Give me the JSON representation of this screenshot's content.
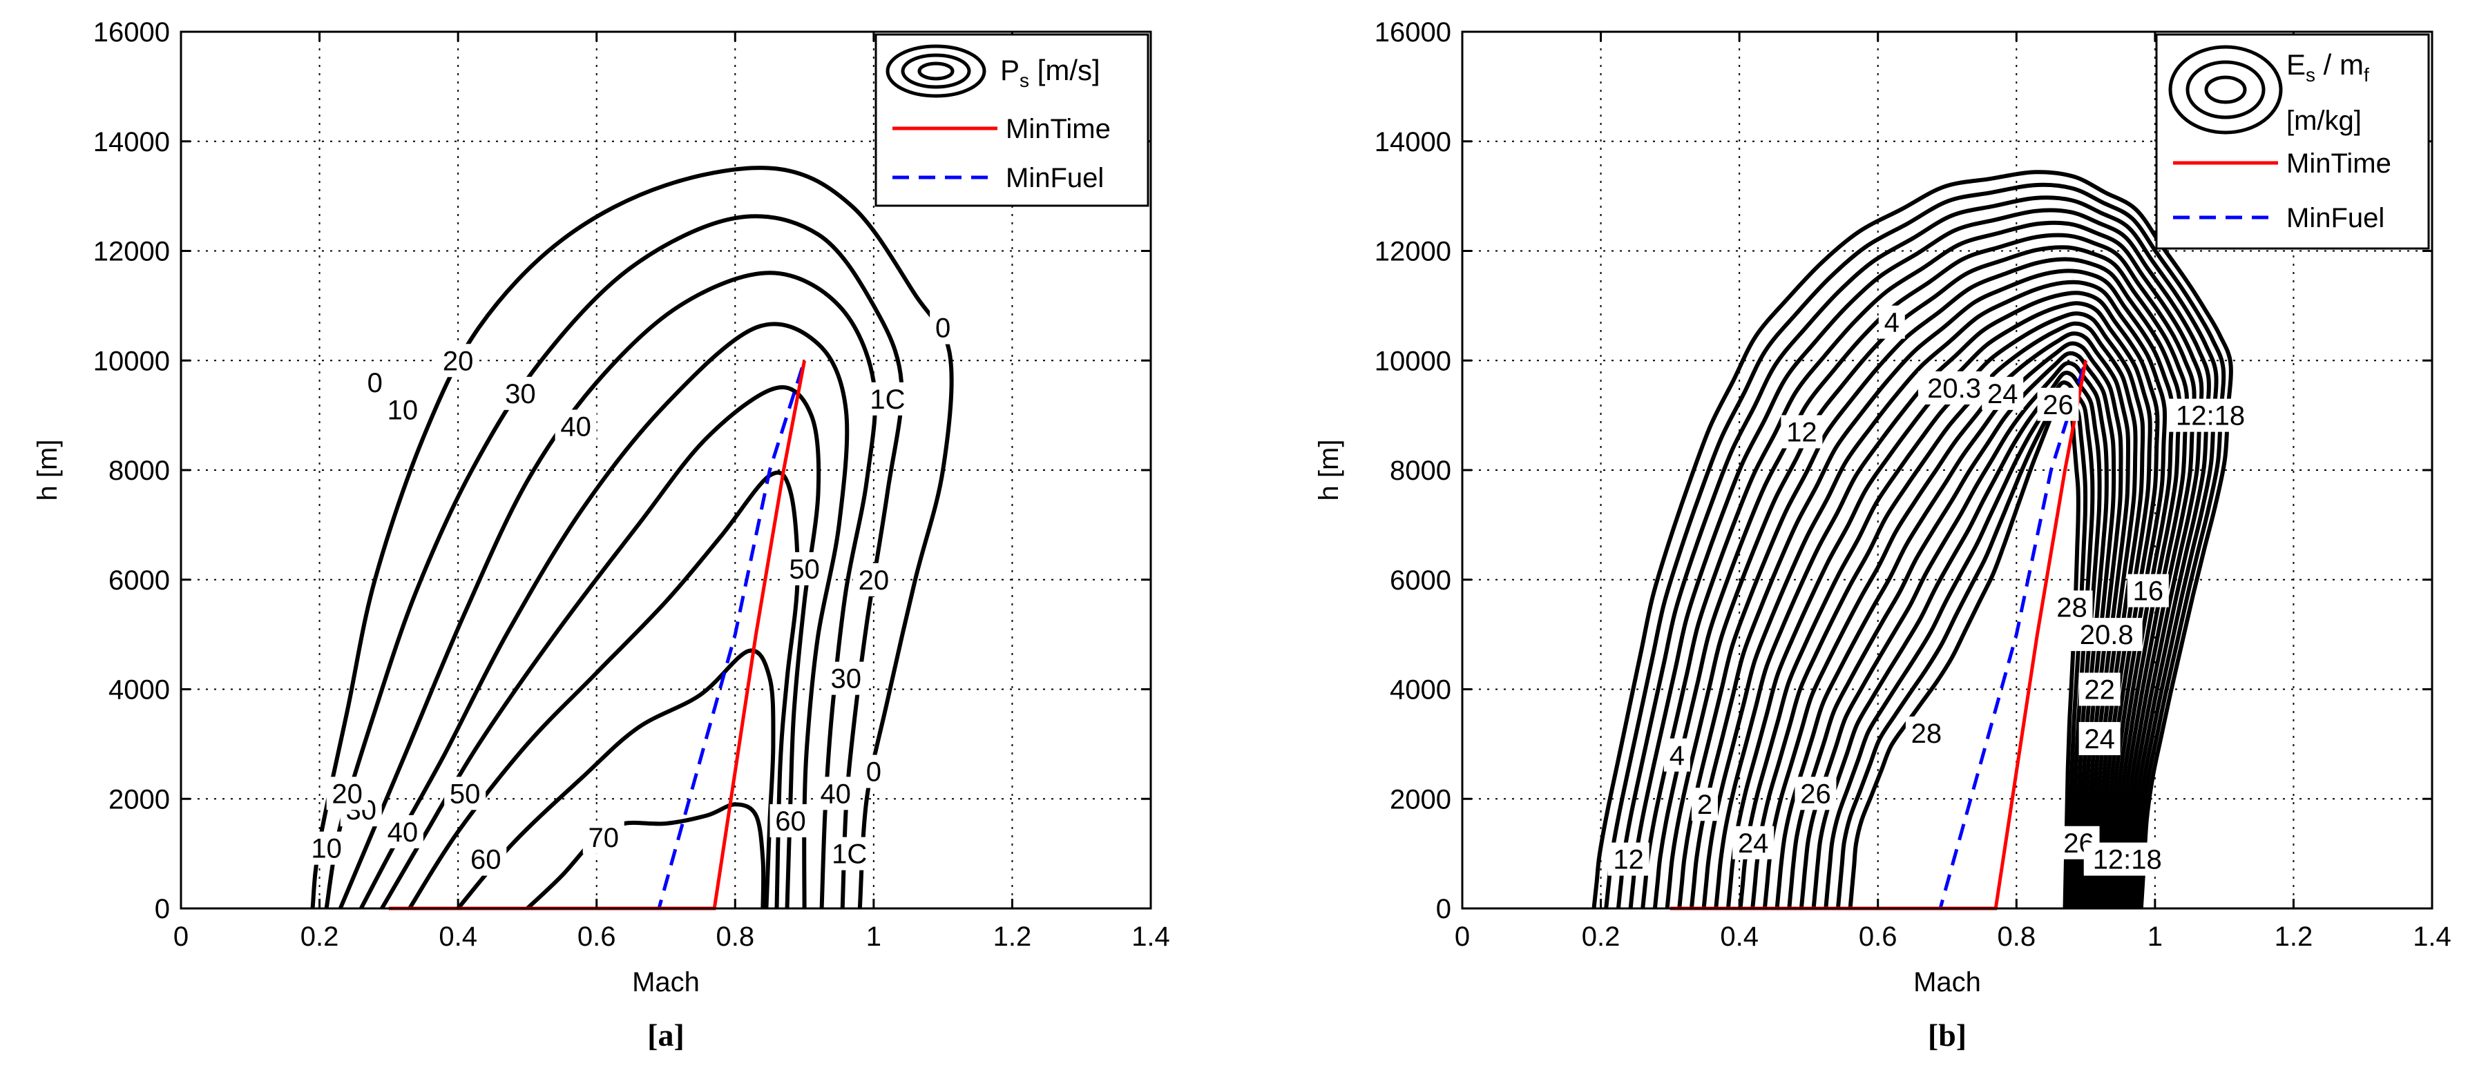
{
  "chart_data": [
    {
      "type": "contour",
      "panel_label": "[a]",
      "xlabel": "Mach",
      "ylabel": "h [m]",
      "xlim": [
        0,
        1.4
      ],
      "ylim": [
        0,
        16000
      ],
      "xticks": [
        "0",
        "0.2",
        "0.4",
        "0.6",
        "0.8",
        "1",
        "1.2",
        "1.4"
      ],
      "yticks": [
        "0",
        "2000",
        "4000",
        "6000",
        "8000",
        "10000",
        "12000",
        "14000",
        "16000"
      ],
      "grid": true,
      "legend": {
        "position": "top-right",
        "contour_label": "P",
        "contour_label_sub": "s",
        "contour_label_unit": " [m/s]",
        "entries": [
          "MinTime",
          "MinFuel"
        ]
      },
      "colors": {
        "min_time": "#ff0000",
        "min_fuel": "#0000ff",
        "contour": "#000000"
      },
      "contours": [
        {
          "level": "0",
          "points": [
            [
              0.19,
              0
            ],
            [
              0.2,
              1200
            ],
            [
              0.24,
              3600
            ],
            [
              0.28,
              6000
            ],
            [
              0.35,
              8600
            ],
            [
              0.43,
              10600
            ],
            [
              0.55,
              12200
            ],
            [
              0.7,
              13200
            ],
            [
              0.86,
              13500
            ],
            [
              0.97,
              12800
            ],
            [
              1.06,
              11200
            ],
            [
              1.11,
              10100
            ],
            [
              1.1,
              8000
            ],
            [
              1.06,
              6000
            ],
            [
              1.02,
              3800
            ],
            [
              0.99,
              2000
            ],
            [
              0.98,
              0
            ]
          ]
        },
        {
          "level": "10",
          "points": [
            [
              0.21,
              0
            ],
            [
              0.23,
              1500
            ],
            [
              0.28,
              3600
            ],
            [
              0.34,
              5800
            ],
            [
              0.42,
              8000
            ],
            [
              0.52,
              10000
            ],
            [
              0.65,
              11700
            ],
            [
              0.8,
              12600
            ],
            [
              0.92,
              12300
            ],
            [
              1.0,
              11000
            ],
            [
              1.04,
              9600
            ],
            [
              1.02,
              7600
            ],
            [
              0.99,
              5200
            ],
            [
              0.97,
              3200
            ],
            [
              0.96,
              1800
            ],
            [
              0.955,
              0
            ]
          ]
        },
        {
          "level": "20",
          "points": [
            [
              0.23,
              0
            ],
            [
              0.27,
              1200
            ],
            [
              0.33,
              3000
            ],
            [
              0.41,
              5400
            ],
            [
              0.5,
              7800
            ],
            [
              0.6,
              9600
            ],
            [
              0.72,
              11000
            ],
            [
              0.85,
              11600
            ],
            [
              0.95,
              11000
            ],
            [
              1.0,
              9600
            ],
            [
              0.99,
              7800
            ],
            [
              0.96,
              5800
            ],
            [
              0.94,
              3600
            ],
            [
              0.93,
              1800
            ],
            [
              0.925,
              0
            ]
          ]
        },
        {
          "level": "30",
          "points": [
            [
              0.26,
              0
            ],
            [
              0.31,
              1200
            ],
            [
              0.38,
              2800
            ],
            [
              0.47,
              5000
            ],
            [
              0.58,
              7300
            ],
            [
              0.7,
              9200
            ],
            [
              0.83,
              10600
            ],
            [
              0.92,
              10300
            ],
            [
              0.96,
              9100
            ],
            [
              0.95,
              7000
            ],
            [
              0.92,
              5000
            ],
            [
              0.905,
              3200
            ],
            [
              0.9,
              1800
            ],
            [
              0.9,
              0
            ]
          ]
        },
        {
          "level": "40",
          "points": [
            [
              0.29,
              0
            ],
            [
              0.35,
              1300
            ],
            [
              0.43,
              3000
            ],
            [
              0.54,
              5000
            ],
            [
              0.66,
              7000
            ],
            [
              0.76,
              8600
            ],
            [
              0.86,
              9500
            ],
            [
              0.91,
              9000
            ],
            [
              0.92,
              7600
            ],
            [
              0.9,
              5600
            ],
            [
              0.885,
              3600
            ],
            [
              0.88,
              2000
            ],
            [
              0.875,
              0
            ]
          ]
        },
        {
          "level": "50",
          "points": [
            [
              0.33,
              0
            ],
            [
              0.4,
              1400
            ],
            [
              0.5,
              3000
            ],
            [
              0.6,
              4300
            ],
            [
              0.7,
              5600
            ],
            [
              0.78,
              6800
            ],
            [
              0.85,
              7900
            ],
            [
              0.88,
              7600
            ],
            [
              0.89,
              6000
            ],
            [
              0.875,
              4200
            ],
            [
              0.865,
              2600
            ],
            [
              0.86,
              0
            ]
          ]
        },
        {
          "level": "60",
          "points": [
            [
              0.4,
              0
            ],
            [
              0.48,
              1200
            ],
            [
              0.58,
              2400
            ],
            [
              0.66,
              3300
            ],
            [
              0.75,
              3900
            ],
            [
              0.82,
              4700
            ],
            [
              0.85,
              4200
            ],
            [
              0.855,
              3000
            ],
            [
              0.85,
              1600
            ],
            [
              0.845,
              0
            ]
          ]
        },
        {
          "level": "70",
          "points": [
            [
              0.5,
              0
            ],
            [
              0.55,
              600
            ],
            [
              0.6,
              1300
            ],
            [
              0.64,
              1550
            ],
            [
              0.7,
              1550
            ],
            [
              0.76,
              1700
            ],
            [
              0.8,
              1900
            ],
            [
              0.83,
              1700
            ],
            [
              0.84,
              900
            ],
            [
              0.84,
              0
            ]
          ]
        }
      ],
      "min_time_path": [
        [
          0.3,
          0
        ],
        [
          0.77,
          0
        ],
        [
          0.83,
          5000
        ],
        [
          0.87,
          8000
        ],
        [
          0.9,
          10000
        ]
      ],
      "min_fuel_path": [
        [
          0.3,
          0
        ],
        [
          0.69,
          0
        ],
        [
          0.8,
          5000
        ],
        [
          0.85,
          8000
        ],
        [
          0.9,
          10000
        ]
      ],
      "contour_labels": [
        {
          "text": "0",
          "x": 0.28,
          "y": 9600
        },
        {
          "text": "10",
          "x": 0.32,
          "y": 9100
        },
        {
          "text": "20",
          "x": 0.4,
          "y": 10000
        },
        {
          "text": "30",
          "x": 0.49,
          "y": 9400
        },
        {
          "text": "40",
          "x": 0.57,
          "y": 8800
        },
        {
          "text": "50",
          "x": 0.9,
          "y": 6200
        },
        {
          "text": "20",
          "x": 1.0,
          "y": 6000
        },
        {
          "text": "1C",
          "x": 1.02,
          "y": 9300
        },
        {
          "text": "0",
          "x": 1.1,
          "y": 10600
        },
        {
          "text": "30",
          "x": 0.96,
          "y": 4200
        },
        {
          "text": "40",
          "x": 0.945,
          "y": 2100
        },
        {
          "text": "0",
          "x": 1.0,
          "y": 2500
        },
        {
          "text": "1C",
          "x": 0.965,
          "y": 1000
        },
        {
          "text": "60",
          "x": 0.88,
          "y": 1600
        },
        {
          "text": "70",
          "x": 0.61,
          "y": 1300
        },
        {
          "text": "60",
          "x": 0.44,
          "y": 900
        },
        {
          "text": "50",
          "x": 0.41,
          "y": 2100
        },
        {
          "text": "40",
          "x": 0.32,
          "y": 1400
        },
        {
          "text": "30",
          "x": 0.26,
          "y": 1800
        },
        {
          "text": "10",
          "x": 0.21,
          "y": 1100
        },
        {
          "text": "20",
          "x": 0.24,
          "y": 2100
        }
      ]
    },
    {
      "type": "contour",
      "panel_label": "[b]",
      "xlabel": "Mach",
      "ylabel": "h [m]",
      "xlim": [
        0,
        1.4
      ],
      "ylim": [
        0,
        16000
      ],
      "xticks": [
        "0",
        "0.2",
        "0.4",
        "0.6",
        "0.8",
        "1",
        "1.2",
        "1.4"
      ],
      "yticks": [
        "0",
        "2000",
        "4000",
        "6000",
        "8000",
        "10000",
        "12000",
        "14000",
        "16000"
      ],
      "grid": true,
      "legend": {
        "position": "top-right",
        "contour_label": "E",
        "contour_label_sub": "s",
        "contour_label_mid": " / m",
        "contour_label_sub2": "f",
        "contour_label_unit": "[m/kg]",
        "entries": [
          "MinTime",
          "MinFuel"
        ]
      },
      "colors": {
        "min_time": "#ff0000",
        "min_fuel": "#0000ff",
        "contour": "#000000"
      },
      "contour_levels": 22,
      "outer_boundary": [
        [
          0.19,
          0
        ],
        [
          0.2,
          1200
        ],
        [
          0.24,
          3600
        ],
        [
          0.28,
          6000
        ],
        [
          0.35,
          8600
        ],
        [
          0.43,
          10600
        ],
        [
          0.55,
          12200
        ],
        [
          0.7,
          13200
        ],
        [
          0.86,
          13500
        ],
        [
          0.97,
          12800
        ],
        [
          1.06,
          11200
        ],
        [
          1.11,
          10100
        ],
        [
          1.1,
          8000
        ],
        [
          1.06,
          6000
        ],
        [
          1.02,
          3800
        ],
        [
          0.99,
          2000
        ],
        [
          0.98,
          0
        ]
      ],
      "inner_boundary": [
        [
          0.56,
          0
        ],
        [
          0.57,
          1400
        ],
        [
          0.62,
          3000
        ],
        [
          0.7,
          4400
        ],
        [
          0.77,
          6200
        ],
        [
          0.82,
          8000
        ],
        [
          0.86,
          9300
        ],
        [
          0.88,
          9000
        ],
        [
          0.89,
          7500
        ],
        [
          0.885,
          5500
        ],
        [
          0.875,
          3000
        ],
        [
          0.87,
          0
        ]
      ],
      "min_time_path": [
        [
          0.3,
          0
        ],
        [
          0.77,
          0
        ],
        [
          0.83,
          5000
        ],
        [
          0.87,
          8000
        ],
        [
          0.9,
          10000
        ]
      ],
      "min_fuel_path": [
        [
          0.3,
          0
        ],
        [
          0.69,
          0
        ],
        [
          0.8,
          5000
        ],
        [
          0.85,
          8000
        ],
        [
          0.9,
          10000
        ]
      ],
      "contour_labels": [
        {
          "text": "12",
          "x": 0.24,
          "y": 900
        },
        {
          "text": "4",
          "x": 0.31,
          "y": 2800
        },
        {
          "text": "24",
          "x": 0.42,
          "y": 1200
        },
        {
          "text": "2",
          "x": 0.35,
          "y": 1900
        },
        {
          "text": "26",
          "x": 0.51,
          "y": 2100
        },
        {
          "text": "28",
          "x": 0.67,
          "y": 3200
        },
        {
          "text": "12",
          "x": 0.49,
          "y": 8700
        },
        {
          "text": "4",
          "x": 0.62,
          "y": 10700
        },
        {
          "text": "20.3",
          "x": 0.71,
          "y": 9500
        },
        {
          "text": "24",
          "x": 0.78,
          "y": 9400
        },
        {
          "text": "26",
          "x": 0.86,
          "y": 9200
        },
        {
          "text": "28",
          "x": 0.88,
          "y": 5500
        },
        {
          "text": "20.8",
          "x": 0.93,
          "y": 5000
        },
        {
          "text": "16",
          "x": 0.99,
          "y": 5800
        },
        {
          "text": "22",
          "x": 0.92,
          "y": 4000
        },
        {
          "text": "24",
          "x": 0.92,
          "y": 3100
        },
        {
          "text": "26",
          "x": 0.89,
          "y": 1200
        },
        {
          "text": "12:18",
          "x": 0.96,
          "y": 900
        },
        {
          "text": "12:18",
          "x": 1.08,
          "y": 9000
        }
      ]
    }
  ]
}
